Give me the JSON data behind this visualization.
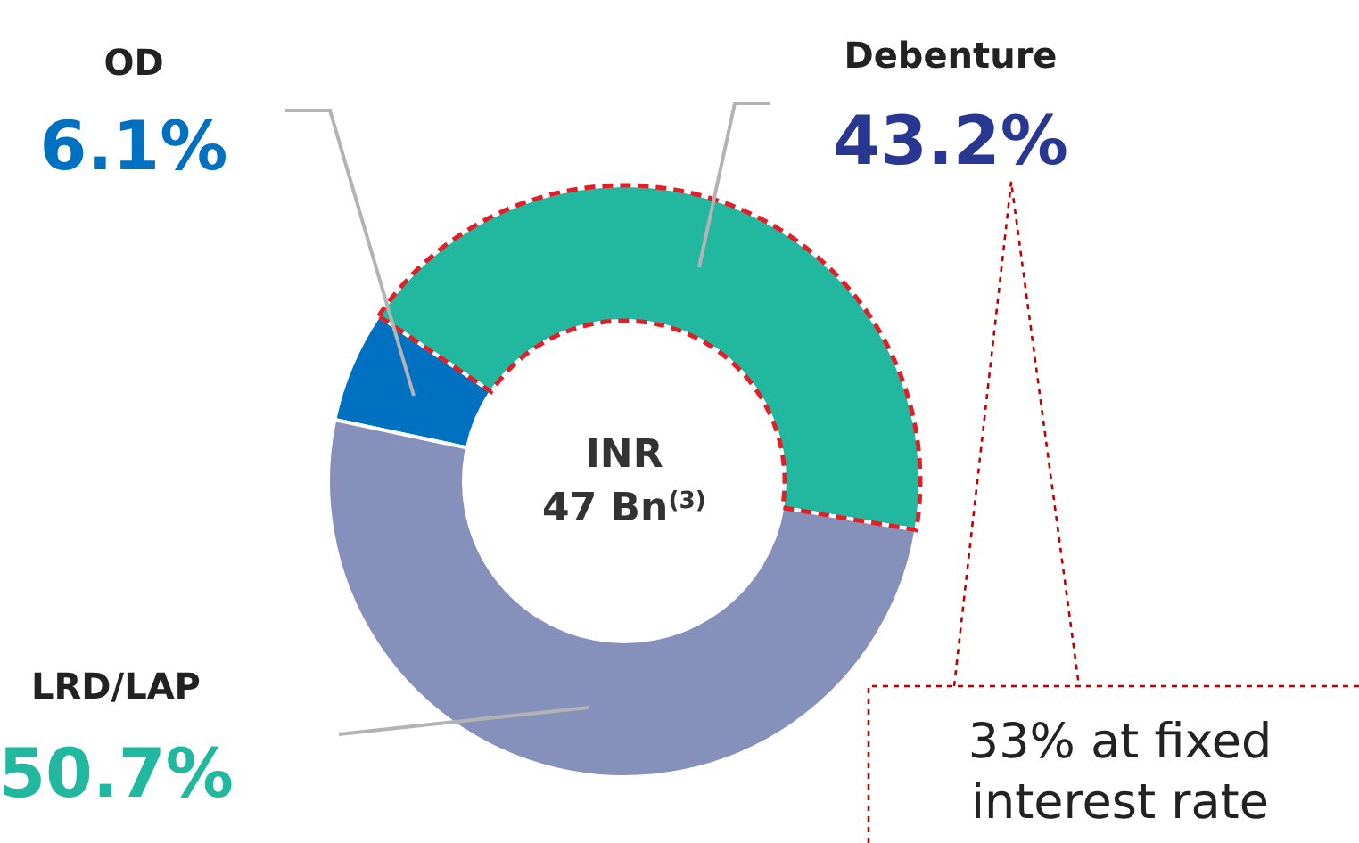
{
  "chart_data": {
    "type": "donut",
    "categories": [
      "OD",
      "Debenture",
      "LRD/LAP"
    ],
    "values": [
      6.1,
      43.2,
      50.7
    ],
    "colors": [
      "#0070c0",
      "#21b89f",
      "#8591bb"
    ],
    "value_labels": [
      "6.1%",
      "43.2%",
      "50.7%"
    ],
    "annotations": [
      "INR 47 Bn$^{(3)}$",
      "33% at fixed interest rate"
    ]
  }
}
